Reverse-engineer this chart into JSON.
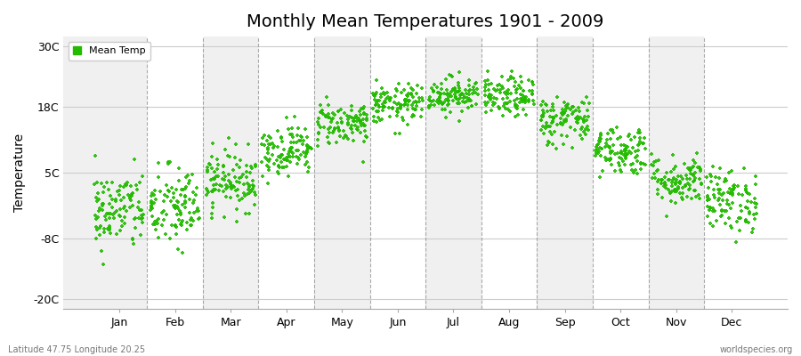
{
  "title": "Monthly Mean Temperatures 1901 - 2009",
  "ylabel": "Temperature",
  "xlabel_months": [
    "Jan",
    "Feb",
    "Mar",
    "Apr",
    "May",
    "Jun",
    "Jul",
    "Aug",
    "Sep",
    "Oct",
    "Nov",
    "Dec"
  ],
  "yticks": [
    -20,
    -8,
    5,
    18,
    30
  ],
  "ytick_labels": [
    "-20C",
    "-8C",
    "5C",
    "18C",
    "30C"
  ],
  "ylim": [
    -22,
    32
  ],
  "xlim": [
    0.0,
    13.0
  ],
  "dot_color": "#22bb00",
  "dot_size": 8,
  "figure_bg_color": "#ffffff",
  "plot_bg_color_light": "#f0f0f0",
  "plot_bg_color_white": "#ffffff",
  "legend_label": "Mean Temp",
  "subtitle_left": "Latitude 47.75 Longitude 20.25",
  "subtitle_right": "worldspecies.org",
  "dashed_line_color": "#888888",
  "years": 109,
  "mean_temps": [
    -2.5,
    -2.0,
    3.5,
    9.5,
    14.8,
    18.5,
    20.5,
    20.0,
    15.5,
    9.5,
    3.5,
    -0.5
  ],
  "std_temps": [
    4.0,
    4.2,
    3.0,
    2.5,
    2.2,
    2.0,
    1.8,
    2.0,
    2.5,
    2.5,
    2.5,
    3.2
  ]
}
